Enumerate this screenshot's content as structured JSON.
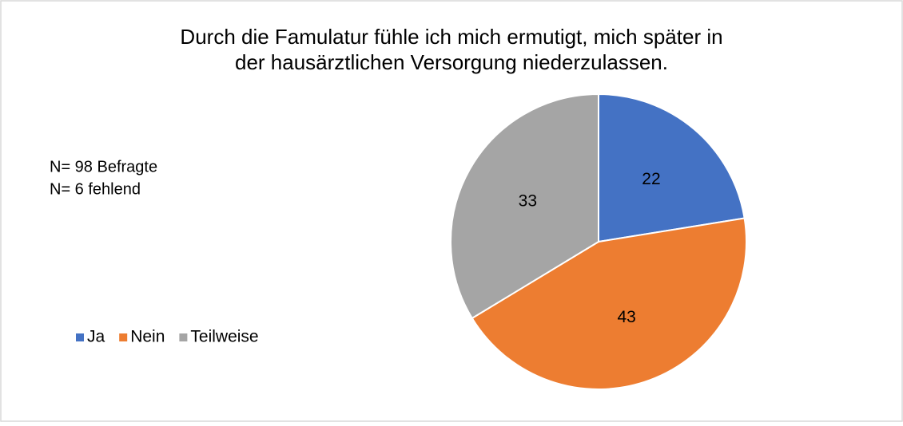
{
  "chart_data": {
    "type": "pie",
    "title": [
      "Durch die Famulatur fühle ich mich ermutigt, mich später in",
      "der hausärztlichen Versorgung niederzulassen."
    ],
    "annotations": [
      "N= 98 Befragte",
      "N= 6 fehlend"
    ],
    "categories": [
      "Ja",
      "Nein",
      "Teilweise"
    ],
    "values": [
      22,
      43,
      33
    ],
    "colors": [
      "#4472c4",
      "#ed7d31",
      "#a5a5a5"
    ],
    "legend": "left"
  }
}
